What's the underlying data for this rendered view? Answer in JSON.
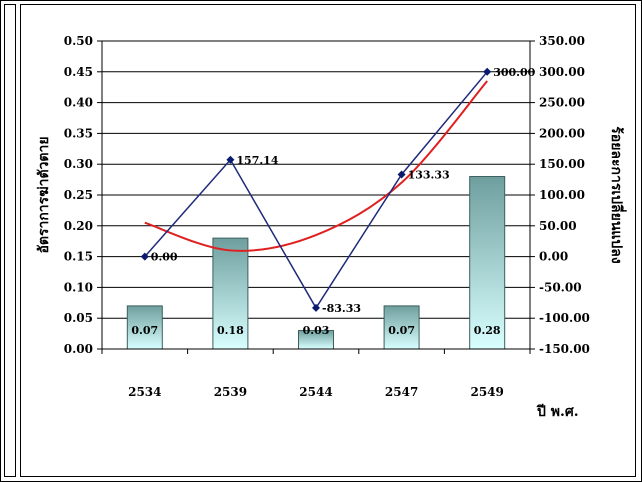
{
  "chart_data": {
    "type": "bar",
    "categories": [
      "2534",
      "2539",
      "2544",
      "2547",
      "2549"
    ],
    "series": [
      {
        "kind": "bar",
        "axis": "left",
        "values": [
          0.07,
          0.18,
          0.03,
          0.07,
          0.28
        ],
        "labels": [
          "0.07",
          "0.18",
          "0.03",
          "0.07",
          "0.28"
        ]
      },
      {
        "kind": "line",
        "axis": "right",
        "values": [
          0.0,
          157.14,
          -83.33,
          133.33,
          300.0
        ],
        "labels": [
          "0.00",
          "157.14",
          "-83.33",
          "133.33",
          "300.00"
        ]
      },
      {
        "kind": "trendline",
        "axis": "right",
        "values": [
          55,
          10,
          35,
          120,
          285
        ]
      }
    ],
    "y_left": {
      "ylim": [
        0,
        0.5
      ],
      "ticks": [
        "0.00",
        "0.05",
        "0.10",
        "0.15",
        "0.20",
        "0.25",
        "0.30",
        "0.35",
        "0.40",
        "0.45",
        "0.50"
      ],
      "label": "อัตราการฆ่าตัวตาย"
    },
    "y_right": {
      "ylim": [
        -150,
        350
      ],
      "ticks": [
        "-150.00",
        "-100.00",
        "-50.00",
        "0.00",
        "50.00",
        "100.00",
        "150.00",
        "200.00",
        "250.00",
        "300.00",
        "350.00"
      ],
      "label": "ร้อยละการเปลี่ยนแปลง"
    },
    "xlabel": "ปี พ.ศ.",
    "grid": true,
    "legend": "none",
    "colors": {
      "bar_top": "#6e9f9e",
      "bar_bottom": "#d9ffff",
      "line": "#1f2a7a",
      "marker": "#0a1a6e",
      "trend": "#e02020",
      "grid": "#000000"
    }
  }
}
